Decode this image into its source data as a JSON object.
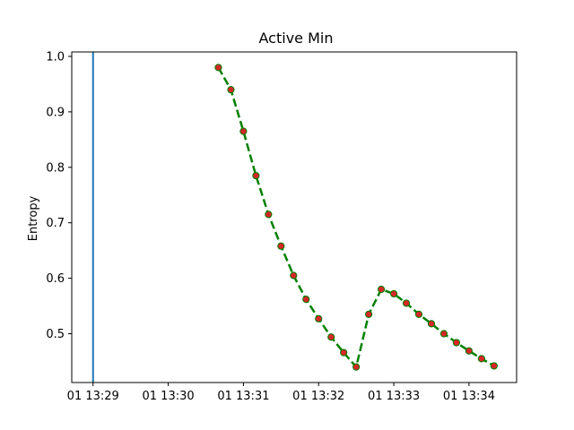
{
  "chart_data": {
    "type": "line",
    "title": "Active Min",
    "xlabel": "",
    "ylabel": "Entropy",
    "x_ticks": [
      "01 13:29",
      "01 13:30",
      "01 13:31",
      "01 13:32",
      "01 13:33",
      "01 13:34"
    ],
    "y_ticks": [
      "0.5",
      "0.6",
      "0.7",
      "0.8",
      "0.9",
      "1.0"
    ],
    "xlim": [
      "13:28:43",
      "13:34:38"
    ],
    "ylim": [
      0.412,
      1.008
    ],
    "grid": false,
    "vertical_line": {
      "x": "13:29:00",
      "color": "#1f77b4"
    },
    "series": [
      {
        "line_color": "#008000",
        "line_style": "dashed",
        "marker_color": "#d62728",
        "points": [
          {
            "x": "13:30:40",
            "y": 0.98
          },
          {
            "x": "13:30:50",
            "y": 0.94
          },
          {
            "x": "13:31:00",
            "y": 0.865
          },
          {
            "x": "13:31:10",
            "y": 0.785
          },
          {
            "x": "13:31:20",
            "y": 0.715
          },
          {
            "x": "13:31:30",
            "y": 0.658
          },
          {
            "x": "13:31:40",
            "y": 0.605
          },
          {
            "x": "13:31:50",
            "y": 0.562
          },
          {
            "x": "13:32:00",
            "y": 0.527
          },
          {
            "x": "13:32:10",
            "y": 0.494
          },
          {
            "x": "13:32:20",
            "y": 0.466
          },
          {
            "x": "13:32:30",
            "y": 0.44
          },
          {
            "x": "13:32:40",
            "y": 0.535
          },
          {
            "x": "13:32:50",
            "y": 0.58
          },
          {
            "x": "13:33:00",
            "y": 0.572
          },
          {
            "x": "13:33:10",
            "y": 0.555
          },
          {
            "x": "13:33:20",
            "y": 0.535
          },
          {
            "x": "13:33:30",
            "y": 0.518
          },
          {
            "x": "13:33:40",
            "y": 0.5
          },
          {
            "x": "13:33:50",
            "y": 0.484
          },
          {
            "x": "13:34:00",
            "y": 0.469
          },
          {
            "x": "13:34:10",
            "y": 0.455
          },
          {
            "x": "13:34:20",
            "y": 0.442
          }
        ]
      }
    ]
  }
}
